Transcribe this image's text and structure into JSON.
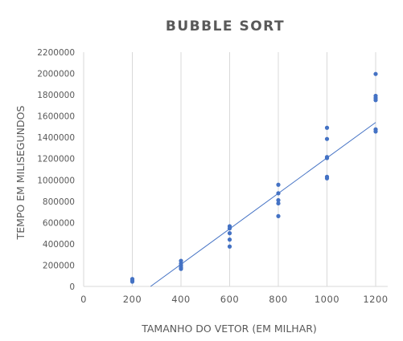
{
  "chart_data": {
    "type": "scatter",
    "title": "BUBBLE SORT",
    "xlabel": "TAMANHO DO VETOR (EM MILHAR)",
    "ylabel": "TEMPO EM MILISEGUNDOS",
    "xlim": [
      0,
      1200
    ],
    "ylim": [
      0,
      2200000
    ],
    "x_ticks": [
      "0",
      "200",
      "400",
      "600",
      "800",
      "1000",
      "1200"
    ],
    "y_ticks": [
      "0",
      "200000",
      "400000",
      "600000",
      "800000",
      "1000000",
      "1200000",
      "1400000",
      "1600000",
      "1800000",
      "2000000",
      "2200000"
    ],
    "grid": "vertical",
    "legend": "none",
    "marker_color": "#4472c4",
    "trendline": {
      "type": "linear",
      "color": "#4472c4",
      "from": [
        275,
        0
      ],
      "to": [
        1200,
        1540000
      ]
    },
    "points": [
      {
        "x": 200,
        "y": 70000
      },
      {
        "x": 200,
        "y": 55000
      },
      {
        "x": 200,
        "y": 45000
      },
      {
        "x": 400,
        "y": 240000
      },
      {
        "x": 400,
        "y": 215000
      },
      {
        "x": 400,
        "y": 195000
      },
      {
        "x": 400,
        "y": 175000
      },
      {
        "x": 400,
        "y": 165000
      },
      {
        "x": 600,
        "y": 565000
      },
      {
        "x": 600,
        "y": 545000
      },
      {
        "x": 600,
        "y": 500000
      },
      {
        "x": 600,
        "y": 440000
      },
      {
        "x": 600,
        "y": 375000
      },
      {
        "x": 800,
        "y": 955000
      },
      {
        "x": 800,
        "y": 875000
      },
      {
        "x": 800,
        "y": 810000
      },
      {
        "x": 800,
        "y": 780000
      },
      {
        "x": 800,
        "y": 660000
      },
      {
        "x": 1000,
        "y": 1490000
      },
      {
        "x": 1000,
        "y": 1385000
      },
      {
        "x": 1000,
        "y": 1215000
      },
      {
        "x": 1000,
        "y": 1205000
      },
      {
        "x": 1000,
        "y": 1030000
      },
      {
        "x": 1000,
        "y": 1015000
      },
      {
        "x": 1200,
        "y": 1995000
      },
      {
        "x": 1200,
        "y": 1790000
      },
      {
        "x": 1200,
        "y": 1770000
      },
      {
        "x": 1200,
        "y": 1750000
      },
      {
        "x": 1200,
        "y": 1475000
      },
      {
        "x": 1200,
        "y": 1455000
      }
    ]
  }
}
